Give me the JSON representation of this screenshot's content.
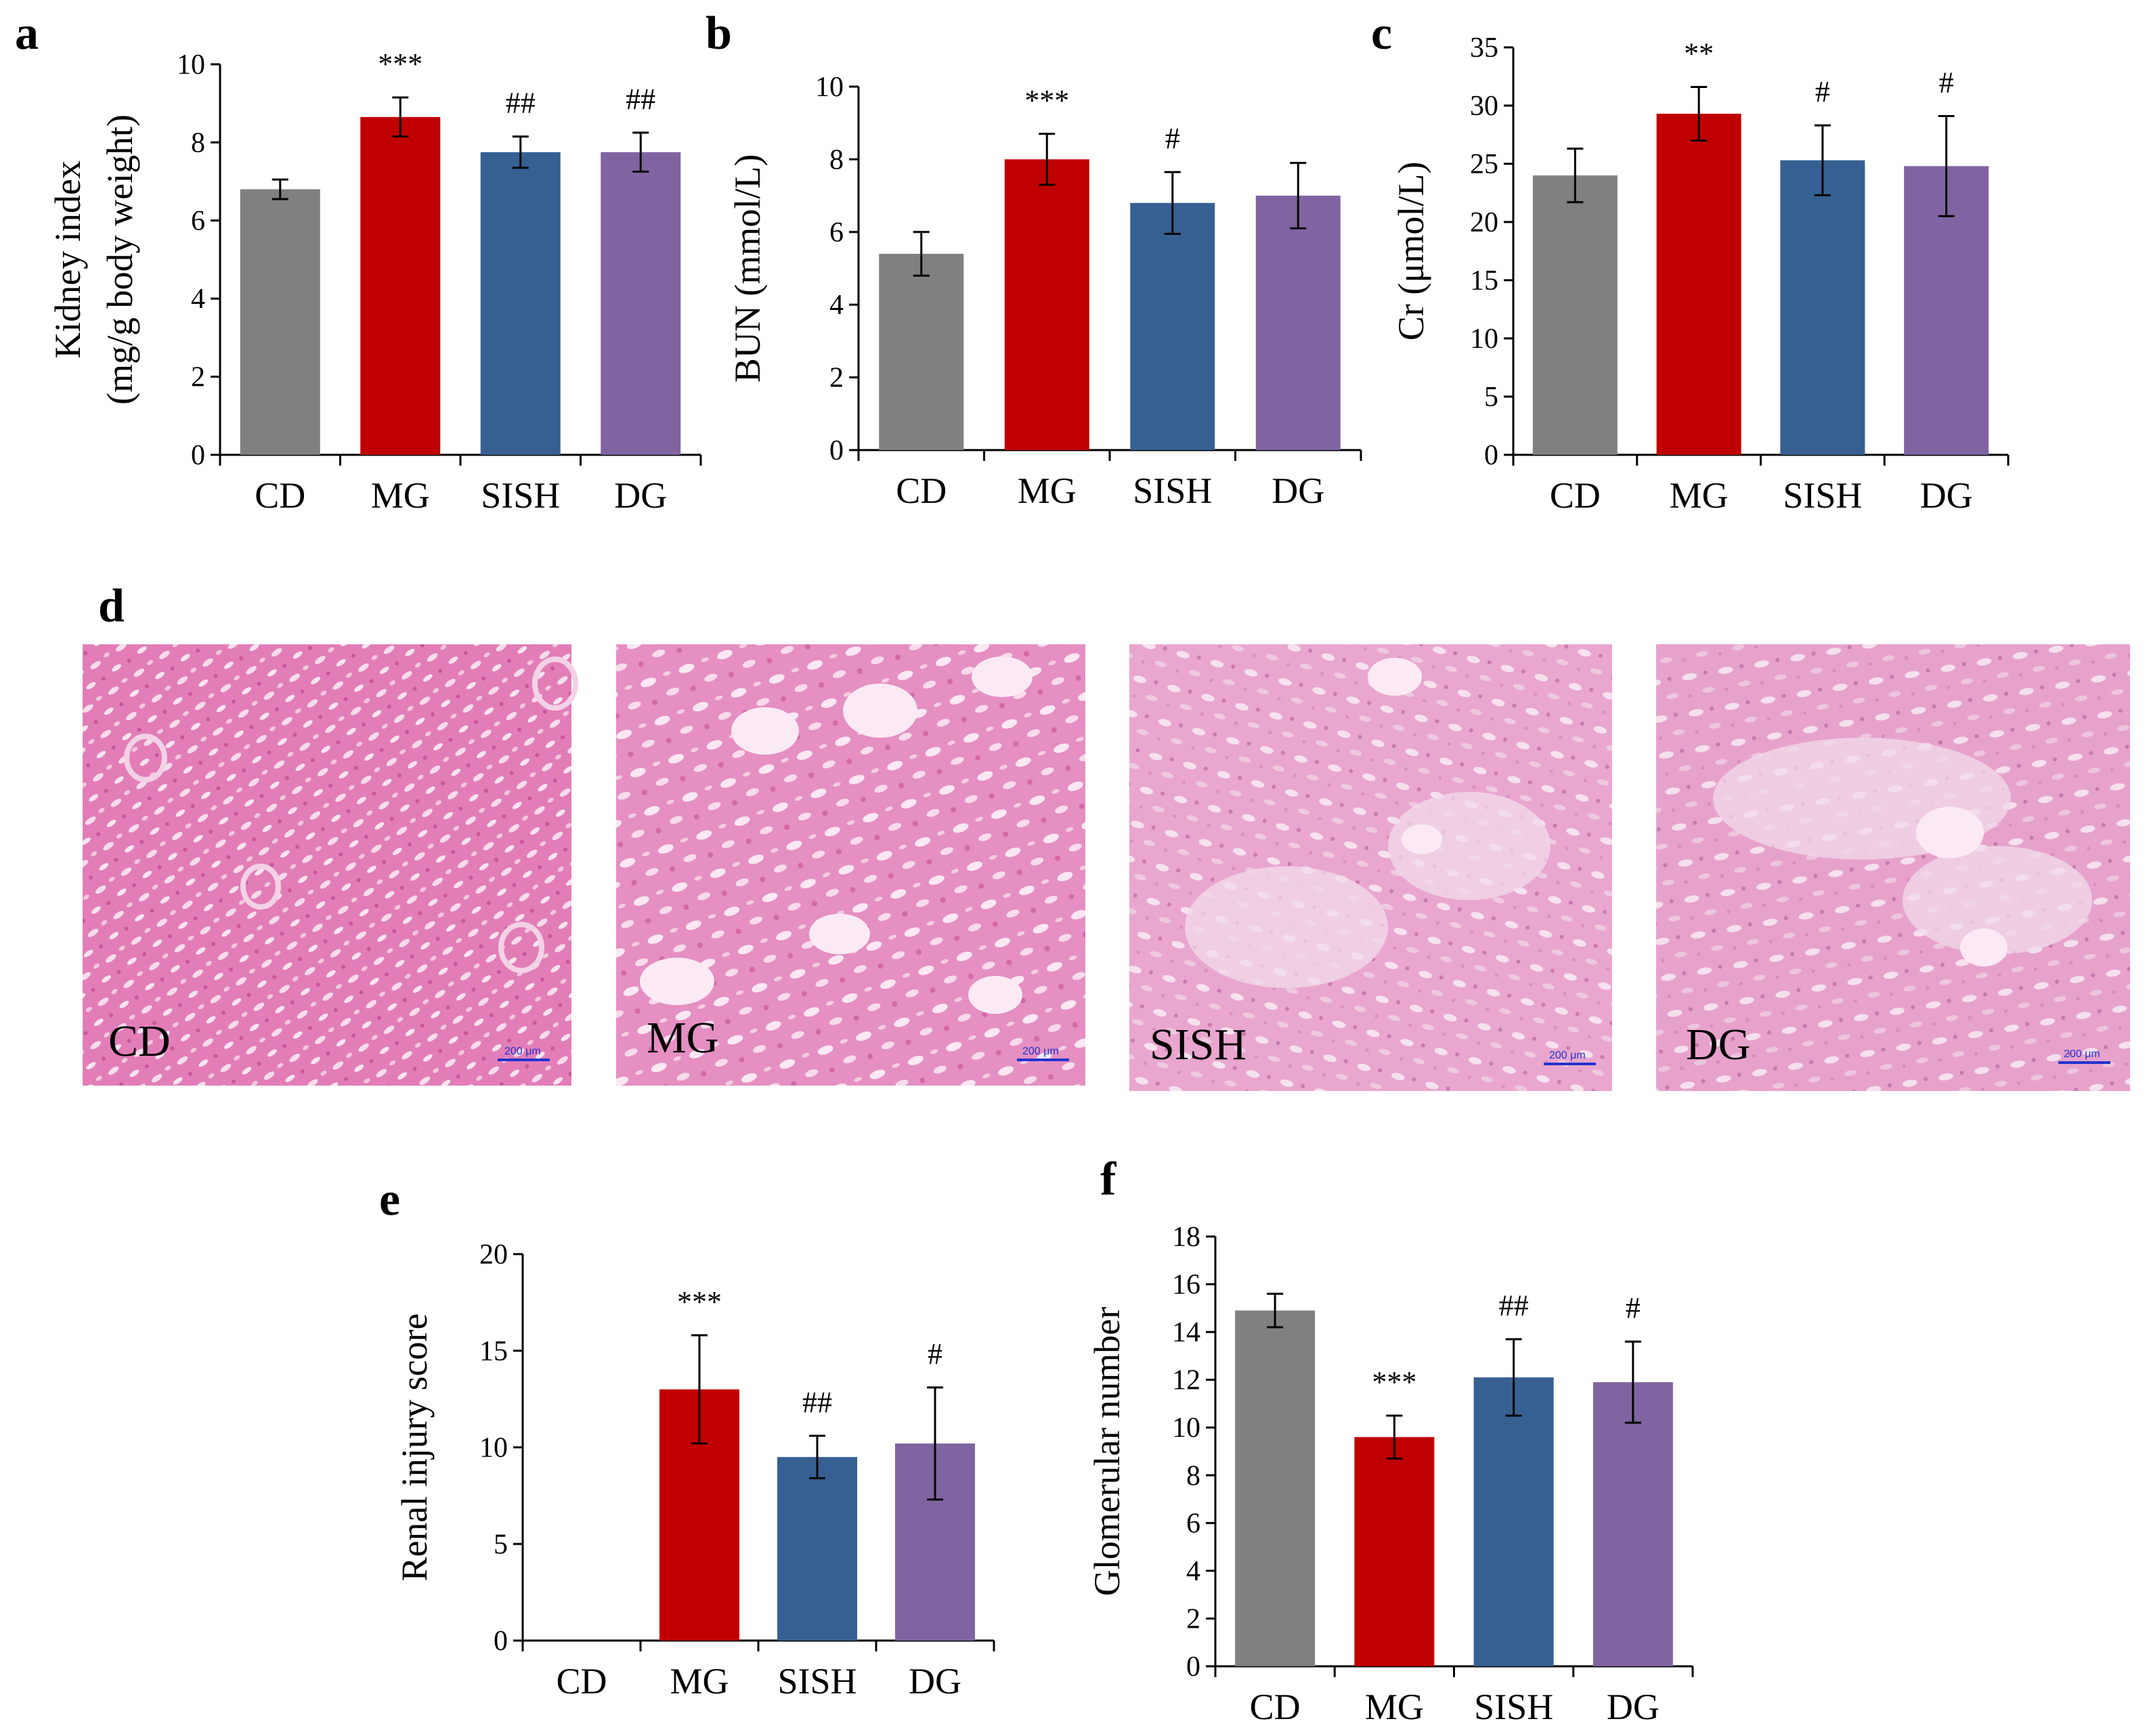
{
  "colors": {
    "CD": "#808080",
    "MG": "#c00000",
    "SISH": "#366092",
    "DG": "#8064a2",
    "axis": "#000000",
    "tissue_pink": "#e07fb6",
    "tissue_light": "#f4d6e8"
  },
  "panel_labels": {
    "a": "a",
    "b": "b",
    "c": "c",
    "d": "d",
    "e": "e",
    "f": "f"
  },
  "chart_data": [
    {
      "id": "a",
      "type": "bar",
      "title": "",
      "categories": [
        "CD",
        "MG",
        "SISH",
        "DG"
      ],
      "values": [
        6.8,
        8.65,
        7.75,
        7.75
      ],
      "errors": [
        0.25,
        0.5,
        0.4,
        0.5
      ],
      "annotations": [
        "",
        "***",
        "##",
        "##"
      ],
      "ylabel_lines": [
        "Kidney index",
        "(mg/g body weight)"
      ],
      "xlabel": "",
      "ylim": [
        0,
        10
      ],
      "yticks": [
        0,
        2,
        4,
        6,
        8,
        10
      ]
    },
    {
      "id": "b",
      "type": "bar",
      "title": "",
      "categories": [
        "CD",
        "MG",
        "SISH",
        "DG"
      ],
      "values": [
        5.4,
        8.0,
        6.8,
        7.0
      ],
      "errors": [
        0.6,
        0.7,
        0.85,
        0.9
      ],
      "annotations": [
        "",
        "***",
        "#",
        ""
      ],
      "ylabel_lines": [
        "BUN (mmol/L)"
      ],
      "xlabel": "",
      "ylim": [
        0,
        10
      ],
      "yticks": [
        0,
        2,
        4,
        6,
        8,
        10
      ]
    },
    {
      "id": "c",
      "type": "bar",
      "title": "",
      "categories": [
        "CD",
        "MG",
        "SISH",
        "DG"
      ],
      "values": [
        24.0,
        29.3,
        25.3,
        24.8
      ],
      "errors": [
        2.3,
        2.3,
        3.0,
        4.3
      ],
      "annotations": [
        "",
        "**",
        "#",
        "#"
      ],
      "ylabel_lines": [
        "Cr (μmol/L)"
      ],
      "xlabel": "",
      "ylim": [
        0,
        35
      ],
      "yticks": [
        0,
        5,
        10,
        15,
        20,
        25,
        30,
        35
      ]
    },
    {
      "id": "e",
      "type": "bar",
      "title": "",
      "categories": [
        "CD",
        "MG",
        "SISH",
        "DG"
      ],
      "values": [
        0,
        13.0,
        9.5,
        10.2
      ],
      "errors": [
        0,
        2.8,
        1.1,
        2.9
      ],
      "annotations": [
        "",
        "***",
        "##",
        "#"
      ],
      "ylabel_lines": [
        "Renal injury score"
      ],
      "xlabel": "",
      "ylim": [
        0,
        20
      ],
      "yticks": [
        0,
        5,
        10,
        15,
        20
      ]
    },
    {
      "id": "f",
      "type": "bar",
      "title": "",
      "categories": [
        "CD",
        "MG",
        "SISH",
        "DG"
      ],
      "values": [
        14.9,
        9.6,
        12.1,
        11.9
      ],
      "errors": [
        0.7,
        0.9,
        1.6,
        1.7
      ],
      "annotations": [
        "",
        "***",
        "##",
        "#"
      ],
      "ylabel_lines": [
        "Glomerular number"
      ],
      "xlabel": "",
      "ylim": [
        0,
        18
      ],
      "yticks": [
        0,
        2,
        4,
        6,
        8,
        10,
        12,
        14,
        16,
        18
      ]
    }
  ],
  "histology": [
    {
      "label": "CD",
      "scale": "200 μm",
      "severity": 0
    },
    {
      "label": "MG",
      "scale": "200 μm",
      "severity": 0.5
    },
    {
      "label": "SISH",
      "scale": "200 μm",
      "severity": 0.8
    },
    {
      "label": "DG",
      "scale": "200 μm",
      "severity": 0.8
    }
  ]
}
